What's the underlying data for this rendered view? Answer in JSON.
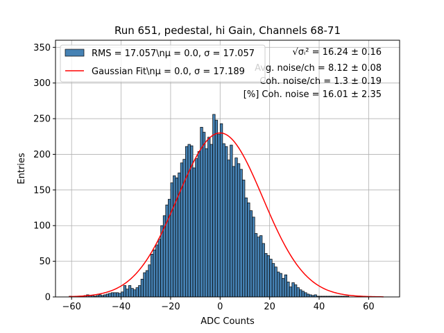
{
  "chart_data": {
    "type": "bar",
    "title": "Run 651, pedestal, hi Gain, Channels 68-71",
    "xlabel": "ADC Counts",
    "ylabel": "Entries",
    "xlim": [
      -66.5,
      72.5
    ],
    "ylim": [
      0,
      360
    ],
    "xticks": [
      -60,
      -40,
      -20,
      0,
      20,
      40,
      60
    ],
    "yticks": [
      0,
      50,
      100,
      150,
      200,
      250,
      300,
      350
    ],
    "grid": true,
    "bin_width": 1,
    "bin_start": -61,
    "values": [
      1,
      0,
      0,
      0,
      0,
      1,
      2,
      3,
      2,
      2,
      1,
      2,
      3,
      2,
      3,
      4,
      5,
      6,
      6,
      6,
      5,
      7,
      16,
      11,
      16,
      12,
      10,
      13,
      16,
      25,
      34,
      37,
      45,
      60,
      66,
      73,
      81,
      100,
      114,
      129,
      137,
      160,
      170,
      167,
      174,
      188,
      193,
      211,
      214,
      212,
      181,
      194,
      204,
      238,
      231,
      208,
      224,
      214,
      256,
      248,
      228,
      243,
      215,
      211,
      192,
      213,
      183,
      195,
      187,
      179,
      164,
      139,
      132,
      121,
      112,
      89,
      84,
      86,
      75,
      61,
      58,
      53,
      47,
      42,
      35,
      33,
      26,
      31,
      21,
      14,
      20,
      17,
      13,
      10,
      8,
      6,
      4,
      3,
      2,
      3,
      1,
      1,
      1,
      1,
      1,
      1,
      1,
      1,
      1,
      1,
      1,
      1,
      1,
      0,
      0,
      0,
      0,
      1
    ],
    "bar_color": "#4682b4",
    "fit": {
      "type": "gaussian",
      "mu": 0.0,
      "sigma": 17.189,
      "amplitude": 230,
      "color": "#ff0000"
    },
    "legend": {
      "position": "top-left",
      "entries": [
        {
          "label": "RMS = 17.057\\nμ = 0.0, σ = 17.057",
          "kind": "patch",
          "color": "#4682b4"
        },
        {
          "label": "Gaussian Fit\\nμ = 0.0, σ = 17.189",
          "kind": "line",
          "color": "#ff0000"
        }
      ]
    },
    "annotations": [
      "√σᵢ² = 16.24 ± 0.16",
      "Avg. noise/ch = 8.12 ± 0.08",
      "Coh. noise/ch = 1.3 ± 0.19",
      "[%] Coh. noise = 16.01 ± 2.35"
    ]
  }
}
